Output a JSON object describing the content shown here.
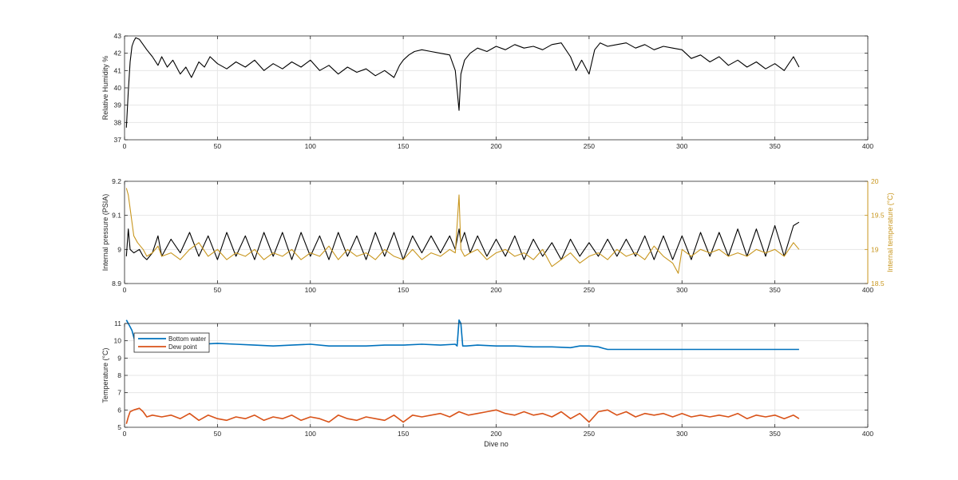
{
  "chart_data": [
    {
      "type": "line",
      "ylabel": "Relative Humidity %",
      "xlim": [
        0,
        400
      ],
      "ylim": [
        37,
        43
      ],
      "xticks": [
        0,
        50,
        100,
        150,
        200,
        250,
        300,
        350,
        400
      ],
      "yticks": [
        37,
        38,
        39,
        40,
        41,
        42,
        43
      ],
      "grid": true,
      "series": [
        {
          "color": "#000000",
          "x": [
            1,
            2,
            3,
            4,
            5,
            6,
            8,
            10,
            12,
            15,
            18,
            20,
            23,
            26,
            30,
            33,
            36,
            40,
            43,
            46,
            50,
            55,
            60,
            65,
            70,
            75,
            80,
            85,
            90,
            95,
            100,
            105,
            110,
            115,
            120,
            125,
            130,
            135,
            140,
            145,
            148,
            150,
            153,
            156,
            160,
            165,
            170,
            175,
            178,
            180,
            181,
            183,
            186,
            190,
            195,
            200,
            205,
            210,
            215,
            220,
            225,
            230,
            235,
            240,
            243,
            246,
            250,
            253,
            256,
            260,
            265,
            270,
            275,
            280,
            285,
            290,
            295,
            300,
            305,
            310,
            315,
            320,
            325,
            330,
            335,
            340,
            345,
            350,
            355,
            360,
            363
          ],
          "values": [
            37.7,
            39.8,
            41.5,
            42.4,
            42.7,
            42.9,
            42.8,
            42.5,
            42.2,
            41.8,
            41.3,
            41.8,
            41.2,
            41.6,
            40.8,
            41.2,
            40.6,
            41.5,
            41.2,
            41.8,
            41.4,
            41.1,
            41.5,
            41.2,
            41.6,
            41.0,
            41.4,
            41.1,
            41.5,
            41.2,
            41.6,
            41.0,
            41.3,
            40.8,
            41.2,
            40.9,
            41.1,
            40.7,
            41.0,
            40.6,
            41.3,
            41.6,
            41.9,
            42.1,
            42.2,
            42.1,
            42.0,
            41.9,
            41.0,
            38.7,
            40.8,
            41.6,
            42.0,
            42.3,
            42.1,
            42.4,
            42.2,
            42.5,
            42.3,
            42.4,
            42.2,
            42.5,
            42.6,
            41.8,
            41.0,
            41.6,
            40.8,
            42.2,
            42.6,
            42.4,
            42.5,
            42.6,
            42.3,
            42.5,
            42.2,
            42.4,
            42.3,
            42.2,
            41.7,
            41.9,
            41.5,
            41.8,
            41.3,
            41.6,
            41.2,
            41.5,
            41.1,
            41.4,
            41.0,
            41.8,
            41.2
          ]
        }
      ]
    },
    {
      "type": "line",
      "ylabel": "Internal pressure (PSIA)",
      "y2label": "Internal temperature (°C)",
      "xlim": [
        0,
        400
      ],
      "ylim": [
        8.9,
        9.2
      ],
      "y2lim": [
        18.5,
        20
      ],
      "xticks": [
        0,
        50,
        100,
        150,
        200,
        250,
        300,
        350,
        400
      ],
      "yticks": [
        "8.9",
        "9",
        "9.1",
        "9.2"
      ],
      "y2ticks": [
        "18.5",
        "19",
        "19.5",
        "20"
      ],
      "grid": true,
      "series": [
        {
          "axis": "left",
          "color": "#000000",
          "x": [
            1,
            2,
            3,
            5,
            8,
            10,
            12,
            15,
            18,
            20,
            25,
            30,
            35,
            40,
            45,
            50,
            55,
            60,
            65,
            70,
            75,
            80,
            85,
            90,
            95,
            100,
            105,
            110,
            115,
            120,
            125,
            130,
            135,
            140,
            145,
            150,
            155,
            160,
            165,
            170,
            175,
            178,
            180,
            181,
            183,
            186,
            190,
            195,
            200,
            205,
            210,
            215,
            220,
            225,
            230,
            235,
            240,
            245,
            250,
            255,
            260,
            265,
            270,
            275,
            280,
            285,
            290,
            295,
            300,
            305,
            310,
            315,
            320,
            325,
            330,
            335,
            340,
            345,
            350,
            355,
            360,
            363
          ],
          "values": [
            8.98,
            9.06,
            9.0,
            8.99,
            9.0,
            8.98,
            8.97,
            8.99,
            9.04,
            8.98,
            9.03,
            8.99,
            9.05,
            8.98,
            9.04,
            8.97,
            9.05,
            8.98,
            9.04,
            8.97,
            9.05,
            8.98,
            9.05,
            8.97,
            9.05,
            8.98,
            9.04,
            8.97,
            9.05,
            8.98,
            9.04,
            8.97,
            9.05,
            8.98,
            9.05,
            8.97,
            9.04,
            8.99,
            9.04,
            8.99,
            9.04,
            9.0,
            9.06,
            9.02,
            9.05,
            8.99,
            9.04,
            8.98,
            9.03,
            8.98,
            9.04,
            8.97,
            9.03,
            8.98,
            9.02,
            8.97,
            9.03,
            8.98,
            9.02,
            8.98,
            9.03,
            8.98,
            9.03,
            8.98,
            9.04,
            8.97,
            9.04,
            8.97,
            9.04,
            8.97,
            9.05,
            8.98,
            9.05,
            8.98,
            9.06,
            8.98,
            9.06,
            8.98,
            9.07,
            8.98,
            9.07,
            9.08
          ]
        },
        {
          "axis": "right",
          "color": "#c8961e",
          "x": [
            1,
            2,
            3,
            4,
            5,
            7,
            10,
            12,
            15,
            18,
            20,
            25,
            30,
            35,
            40,
            45,
            50,
            55,
            60,
            65,
            70,
            75,
            80,
            85,
            90,
            95,
            100,
            105,
            110,
            115,
            120,
            125,
            130,
            135,
            140,
            145,
            150,
            155,
            160,
            165,
            170,
            175,
            178,
            180,
            181,
            183,
            186,
            190,
            195,
            200,
            205,
            210,
            215,
            220,
            225,
            230,
            235,
            240,
            245,
            250,
            255,
            260,
            265,
            270,
            275,
            280,
            285,
            290,
            295,
            298,
            300,
            305,
            310,
            315,
            320,
            325,
            330,
            335,
            340,
            345,
            350,
            355,
            360,
            363
          ],
          "values": [
            19.9,
            19.8,
            19.6,
            19.4,
            19.2,
            19.1,
            19.0,
            18.9,
            18.95,
            19.05,
            18.9,
            18.95,
            18.85,
            19.0,
            19.1,
            18.9,
            19.0,
            18.85,
            18.95,
            18.9,
            19.0,
            18.85,
            18.95,
            18.9,
            19.0,
            18.85,
            18.95,
            18.9,
            19.05,
            18.85,
            19.0,
            18.9,
            18.95,
            18.85,
            19.0,
            18.9,
            18.85,
            19.0,
            18.85,
            18.95,
            18.9,
            19.0,
            18.95,
            19.8,
            19.0,
            18.9,
            18.95,
            19.0,
            18.85,
            18.95,
            19.0,
            18.9,
            18.95,
            18.85,
            19.0,
            18.75,
            18.85,
            18.95,
            18.8,
            18.9,
            18.95,
            18.85,
            19.0,
            18.9,
            18.95,
            18.85,
            19.05,
            18.9,
            18.8,
            18.65,
            19.0,
            18.9,
            19.0,
            18.95,
            19.0,
            18.9,
            18.95,
            18.9,
            19.0,
            18.95,
            19.0,
            18.9,
            19.1,
            19.0
          ]
        }
      ]
    },
    {
      "type": "line",
      "xlabel": "Dive no",
      "ylabel": "Temperature (°C)",
      "xlim": [
        0,
        400
      ],
      "ylim": [
        5,
        11
      ],
      "xticks": [
        0,
        50,
        100,
        150,
        200,
        250,
        300,
        350,
        400
      ],
      "yticks": [
        5,
        6,
        7,
        8,
        9,
        10,
        11
      ],
      "grid": true,
      "legend": "top-left",
      "series": [
        {
          "name": "Bottom water",
          "color": "#0072bd",
          "x": [
            1,
            2,
            3,
            4,
            5,
            6,
            8,
            10,
            20,
            30,
            40,
            50,
            60,
            70,
            80,
            90,
            100,
            110,
            120,
            130,
            140,
            150,
            160,
            170,
            178,
            179,
            180,
            181,
            182,
            184,
            190,
            200,
            210,
            220,
            230,
            240,
            245,
            250,
            255,
            258,
            260,
            270,
            280,
            290,
            300,
            310,
            320,
            330,
            340,
            350,
            360,
            363
          ],
          "values": [
            11.2,
            11.0,
            10.8,
            10.6,
            10.2,
            9.8,
            9.85,
            9.9,
            9.85,
            9.8,
            9.8,
            9.85,
            9.8,
            9.75,
            9.7,
            9.75,
            9.8,
            9.7,
            9.7,
            9.7,
            9.75,
            9.75,
            9.8,
            9.75,
            9.8,
            9.7,
            11.2,
            11.0,
            9.7,
            9.7,
            9.75,
            9.7,
            9.7,
            9.65,
            9.65,
            9.6,
            9.7,
            9.7,
            9.65,
            9.55,
            9.5,
            9.5,
            9.5,
            9.5,
            9.5,
            9.5,
            9.5,
            9.5,
            9.5,
            9.5,
            9.5,
            9.5
          ]
        },
        {
          "name": "Dew point",
          "color": "#d95319",
          "x": [
            1,
            2,
            3,
            5,
            8,
            10,
            12,
            15,
            20,
            25,
            30,
            35,
            40,
            45,
            50,
            55,
            60,
            65,
            70,
            75,
            80,
            85,
            90,
            95,
            100,
            105,
            110,
            115,
            120,
            125,
            130,
            135,
            140,
            145,
            150,
            155,
            160,
            165,
            170,
            175,
            180,
            185,
            190,
            195,
            200,
            205,
            210,
            215,
            220,
            225,
            230,
            235,
            240,
            245,
            250,
            255,
            260,
            265,
            270,
            275,
            280,
            285,
            290,
            295,
            300,
            305,
            310,
            315,
            320,
            325,
            330,
            335,
            340,
            345,
            350,
            355,
            360,
            363
          ],
          "values": [
            5.2,
            5.6,
            5.9,
            6.0,
            6.1,
            5.9,
            5.6,
            5.7,
            5.6,
            5.7,
            5.5,
            5.8,
            5.4,
            5.7,
            5.5,
            5.4,
            5.6,
            5.5,
            5.7,
            5.4,
            5.6,
            5.5,
            5.7,
            5.4,
            5.6,
            5.5,
            5.3,
            5.7,
            5.5,
            5.4,
            5.6,
            5.5,
            5.4,
            5.7,
            5.3,
            5.7,
            5.6,
            5.7,
            5.8,
            5.6,
            5.9,
            5.7,
            5.8,
            5.9,
            6.0,
            5.8,
            5.7,
            5.9,
            5.7,
            5.8,
            5.6,
            5.9,
            5.5,
            5.8,
            5.3,
            5.9,
            6.0,
            5.7,
            5.9,
            5.6,
            5.8,
            5.7,
            5.8,
            5.6,
            5.8,
            5.6,
            5.7,
            5.6,
            5.7,
            5.6,
            5.8,
            5.5,
            5.7,
            5.6,
            5.7,
            5.5,
            5.7,
            5.5
          ]
        }
      ]
    }
  ]
}
